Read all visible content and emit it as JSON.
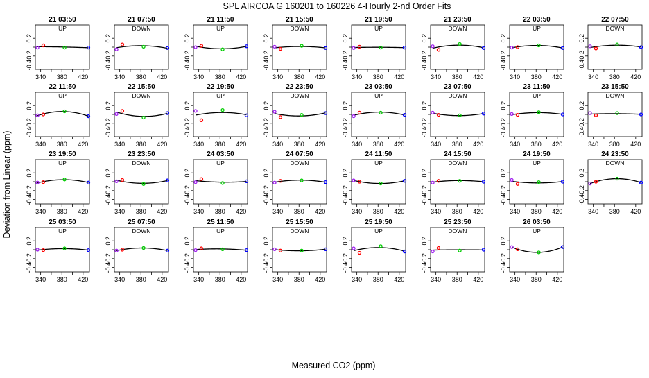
{
  "figure": {
    "title": "SPL    AIRCOA G   160201 to 160226   4-Hourly 2-nd Order Fits",
    "xlabel": "Measured CO2 (ppm)",
    "ylabel": "Deviation from Linear (ppm)"
  },
  "colors": {
    "fit_line": "#000000",
    "low_point_1": "#a020f0",
    "low_point_2": "#ff0000",
    "mid_point": "#00cc00",
    "high_point": "#0000ff"
  },
  "chart_data": {
    "type": "scatter",
    "x_ticks": [
      340,
      380,
      420
    ],
    "x_ticks_unlabeled": [
      360,
      400
    ],
    "xlim": [
      330,
      432
    ],
    "y_ticks": [
      "0.2",
      "-0.2",
      "-0.4"
    ],
    "y_ticks_unlabeled": [
      "0.0"
    ],
    "ylim": [
      -0.5,
      0.5
    ],
    "point_x": [
      334,
      345,
      385,
      430
    ],
    "panels": [
      {
        "label": "21 03:50",
        "dir": "UP",
        "y": [
          -0.01,
          0.04,
          -0.01,
          -0.01
        ]
      },
      {
        "label": "21 07:50",
        "dir": "DOWN",
        "y": [
          -0.05,
          0.06,
          0.01,
          -0.02
        ]
      },
      {
        "label": "21 11:50",
        "dir": "UP",
        "y": [
          0.0,
          0.03,
          -0.05,
          0.02
        ]
      },
      {
        "label": "21 15:50",
        "dir": "DOWN",
        "y": [
          0.01,
          -0.04,
          0.03,
          -0.02
        ]
      },
      {
        "label": "21 19:50",
        "dir": "UP",
        "y": [
          -0.02,
          0.01,
          -0.01,
          -0.01
        ]
      },
      {
        "label": "21 23:50",
        "dir": "DOWN",
        "y": [
          0.02,
          -0.06,
          0.07,
          -0.02
        ]
      },
      {
        "label": "22 03:50",
        "dir": "UP",
        "y": [
          -0.01,
          0.0,
          0.04,
          -0.02
        ]
      },
      {
        "label": "22 07:50",
        "dir": "DOWN",
        "y": [
          0.02,
          -0.03,
          0.06,
          0.0
        ]
      },
      {
        "label": "22 11:50",
        "dir": "UP",
        "y": [
          -0.02,
          0.0,
          0.07,
          -0.04
        ]
      },
      {
        "label": "22 15:50",
        "dir": "DOWN",
        "y": [
          0.01,
          0.08,
          -0.07,
          0.03
        ]
      },
      {
        "label": "22 19:50",
        "dir": "UP",
        "y": [
          0.08,
          -0.13,
          0.1,
          -0.02
        ]
      },
      {
        "label": "22 23:50",
        "dir": "DOWN",
        "y": [
          0.06,
          -0.06,
          -0.01,
          0.03
        ]
      },
      {
        "label": "23 03:50",
        "dir": "UP",
        "y": [
          -0.04,
          0.04,
          0.04,
          -0.01
        ]
      },
      {
        "label": "23 07:50",
        "dir": "DOWN",
        "y": [
          0.04,
          -0.01,
          -0.02,
          0.02
        ]
      },
      {
        "label": "23 11:50",
        "dir": "UP",
        "y": [
          0.01,
          -0.01,
          0.05,
          0.0
        ]
      },
      {
        "label": "23 15:50",
        "dir": "DOWN",
        "y": [
          0.03,
          -0.02,
          0.03,
          0.0
        ]
      },
      {
        "label": "23 19:50",
        "dir": "UP",
        "y": [
          -0.02,
          -0.01,
          0.05,
          -0.02
        ]
      },
      {
        "label": "23 23:50",
        "dir": "DOWN",
        "y": [
          0.01,
          0.04,
          -0.05,
          0.03
        ]
      },
      {
        "label": "24 03:50",
        "dir": "UP",
        "y": [
          -0.01,
          0.06,
          -0.03,
          0.01
        ]
      },
      {
        "label": "24 07:50",
        "dir": "DOWN",
        "y": [
          -0.02,
          0.02,
          0.03,
          -0.01
        ]
      },
      {
        "label": "24 11:50",
        "dir": "UP",
        "y": [
          0.03,
          0.0,
          -0.04,
          0.02
        ]
      },
      {
        "label": "24 15:50",
        "dir": "DOWN",
        "y": [
          -0.02,
          0.02,
          0.02,
          0.0
        ]
      },
      {
        "label": "24 19:50",
        "dir": "UP",
        "y": [
          0.04,
          -0.05,
          -0.01,
          0.0
        ]
      },
      {
        "label": "24 23:50",
        "dir": "DOWN",
        "y": [
          -0.04,
          0.0,
          0.07,
          -0.02
        ]
      },
      {
        "label": "25 03:50",
        "dir": "UP",
        "y": [
          0.0,
          -0.01,
          0.03,
          -0.01
        ]
      },
      {
        "label": "25 07:50",
        "dir": "DOWN",
        "y": [
          -0.02,
          0.0,
          0.04,
          -0.02
        ]
      },
      {
        "label": "25 11:50",
        "dir": "UP",
        "y": [
          -0.01,
          0.03,
          0.01,
          -0.01
        ]
      },
      {
        "label": "25 15:50",
        "dir": "DOWN",
        "y": [
          0.01,
          -0.02,
          -0.02,
          0.01
        ]
      },
      {
        "label": "25 19:50",
        "dir": "UP",
        "y": [
          0.03,
          -0.07,
          0.08,
          -0.04
        ]
      },
      {
        "label": "25 23:50",
        "dir": "DOWN",
        "y": [
          -0.04,
          0.04,
          -0.02,
          0.0
        ]
      },
      {
        "label": "26 03:50",
        "dir": "UP",
        "y": [
          0.06,
          0.01,
          -0.06,
          0.06
        ]
      }
    ]
  }
}
